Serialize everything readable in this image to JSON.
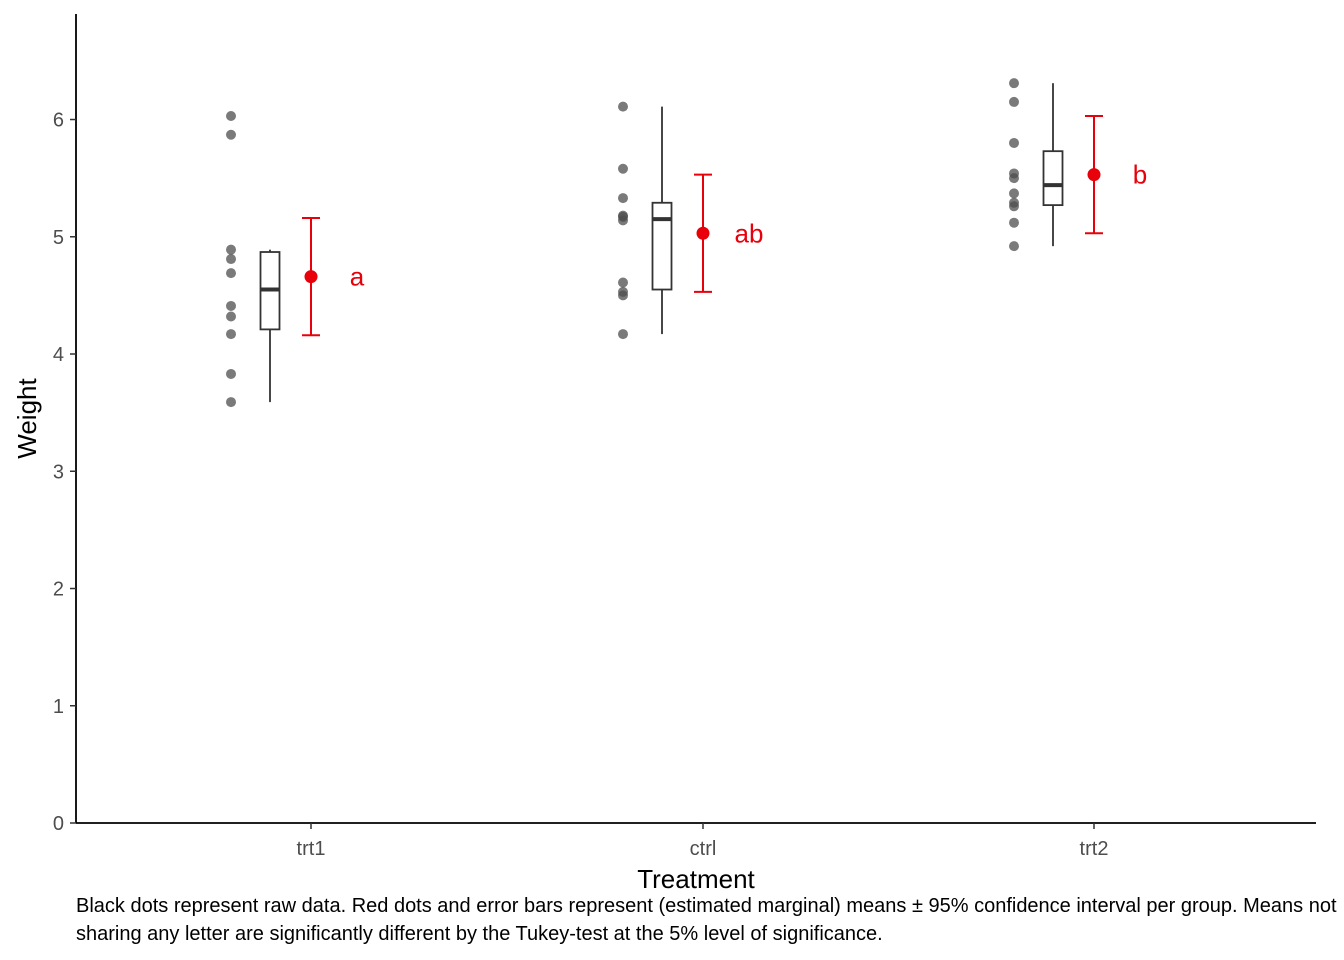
{
  "chart_data": {
    "type": "boxplot",
    "xlabel": "Treatment",
    "ylabel": "Weight",
    "ylim": [
      0,
      6.9
    ],
    "yticks": [
      0,
      1,
      2,
      3,
      4,
      5,
      6
    ],
    "categories": [
      "trt1",
      "ctrl",
      "trt2"
    ],
    "raw_points": {
      "trt1": [
        4.81,
        4.17,
        4.41,
        3.59,
        5.87,
        3.83,
        6.03,
        4.89,
        4.32,
        4.69
      ],
      "ctrl": [
        4.17,
        5.58,
        5.18,
        6.11,
        4.5,
        4.61,
        5.17,
        4.53,
        5.33,
        5.14
      ],
      "trt2": [
        6.31,
        5.12,
        5.54,
        5.5,
        5.37,
        5.29,
        4.92,
        6.15,
        5.8,
        5.26
      ]
    },
    "boxplots": [
      {
        "category": "trt1",
        "min": 3.59,
        "q1": 4.21,
        "median": 4.55,
        "q3": 4.87,
        "max": 4.89
      },
      {
        "category": "ctrl",
        "min": 4.17,
        "q1": 4.55,
        "median": 5.15,
        "q3": 5.29,
        "max": 6.11
      },
      {
        "category": "trt2",
        "min": 4.92,
        "q1": 5.27,
        "median": 5.44,
        "q3": 5.73,
        "max": 6.31
      }
    ],
    "means": [
      {
        "category": "trt1",
        "mean": 4.66,
        "lower": 4.16,
        "upper": 5.16,
        "letter": "a"
      },
      {
        "category": "ctrl",
        "mean": 5.03,
        "lower": 4.53,
        "upper": 5.53,
        "letter": "ab"
      },
      {
        "category": "trt2",
        "mean": 5.53,
        "lower": 5.03,
        "upper": 6.03,
        "letter": "b"
      }
    ],
    "caption": "Black dots represent raw data. Red dots and error bars represent (estimated marginal) means ± 95% confidence interval per group. Means not sharing any letter are significantly different by the Tukey-test at the 5% level of significance.",
    "colors": {
      "raw": "#4d4d4d",
      "mean": "#e8000b",
      "box": "#333333",
      "axis": "#000000",
      "tick_text": "#4d4d4d"
    },
    "grid": false
  }
}
